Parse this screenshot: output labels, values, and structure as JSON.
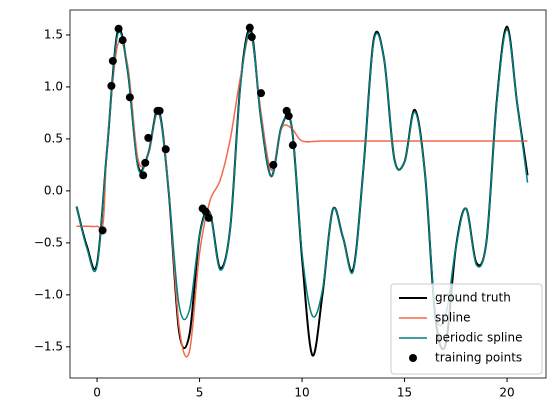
{
  "chart_data": {
    "type": "line",
    "xlim": [
      -1.32,
      21.9
    ],
    "ylim": [
      -1.8,
      1.74
    ],
    "xticks": [
      0,
      5,
      10,
      15,
      20
    ],
    "yticks": [
      {
        "value": -1.5,
        "label": "−1.5"
      },
      {
        "value": -1.0,
        "label": "−1.0"
      },
      {
        "value": -0.5,
        "label": "−0.5"
      },
      {
        "value": 0,
        "label": "0.0"
      },
      {
        "value": 0.5,
        "label": "0.5"
      },
      {
        "value": 1.0,
        "label": "1.0"
      },
      {
        "value": 1.5,
        "label": "1.5"
      }
    ],
    "legend": "lower right",
    "series": [
      {
        "name": "ground truth",
        "type": "line",
        "color": "#000000",
        "width": 2,
        "x": [
          -1,
          -0.5,
          0,
          0.5,
          1,
          1.5,
          2,
          2.5,
          3,
          3.5,
          4,
          4.5,
          5,
          5.5,
          6,
          6.5,
          7,
          7.5,
          8,
          8.5,
          9,
          9.5,
          10,
          10.5,
          11,
          11.5,
          12,
          12.5,
          13,
          13.5,
          14,
          14.5,
          15,
          15.5,
          16,
          16.5,
          17,
          17.5,
          18,
          18.5,
          19,
          19.5,
          20,
          20.5,
          21
        ],
        "values": [
          -0.15,
          -0.53,
          -0.7,
          0.43,
          1.53,
          1.15,
          0.24,
          0.36,
          0.78,
          -0.02,
          -1.35,
          -1.39,
          -0.43,
          -0.21,
          -0.74,
          -0.35,
          1.04,
          1.55,
          0.69,
          0.14,
          0.62,
          0.61,
          -0.65,
          -1.58,
          -0.99,
          -0.18,
          -0.45,
          -0.75,
          0.23,
          1.46,
          1.27,
          0.31,
          0.28,
          0.78,
          0.16,
          -1.21,
          -1.48,
          -0.55,
          -0.17,
          -0.69,
          -0.48,
          0.87,
          1.58,
          0.83,
          0.15
        ]
      },
      {
        "name": "spline",
        "type": "line",
        "color": "#f4694d",
        "width": 1.5,
        "x": [
          -1,
          -0.5,
          0,
          0.3,
          0.5,
          1,
          1.5,
          2,
          2.5,
          3,
          3.5,
          4,
          4.5,
          5,
          5.5,
          6,
          6.5,
          7,
          7.5,
          8,
          8.5,
          9,
          9.5,
          10,
          11,
          13,
          15,
          17,
          19,
          21
        ],
        "values": [
          -0.34,
          -0.34,
          -0.34,
          -0.3,
          0.45,
          1.4,
          1.2,
          0.3,
          0.35,
          0.75,
          0.0,
          -1.3,
          -1.55,
          -0.6,
          -0.1,
          0.1,
          0.5,
          1.1,
          1.5,
          0.75,
          0.2,
          0.6,
          0.6,
          0.48,
          0.48,
          0.48,
          0.48,
          0.48,
          0.48,
          0.48
        ]
      },
      {
        "name": "periodic spline",
        "type": "line",
        "color": "#007f80",
        "width": 1.5,
        "x": [
          -1,
          -0.5,
          0,
          0.5,
          1,
          1.5,
          2,
          2.5,
          3,
          3.5,
          4,
          4.5,
          5,
          5.5,
          6,
          6.5,
          7,
          7.5,
          8,
          8.5,
          9,
          9.5,
          10,
          10.5,
          11,
          11.5,
          12,
          12.5,
          13,
          13.5,
          14,
          14.5,
          15,
          15.5,
          16,
          16.5,
          17,
          17.5,
          18,
          18.5,
          19,
          19.5,
          20,
          20.5,
          21
        ],
        "values": [
          -0.15,
          -0.55,
          -0.72,
          0.43,
          1.5,
          1.15,
          0.22,
          0.36,
          0.76,
          -0.02,
          -1.1,
          -1.15,
          -0.43,
          -0.21,
          -0.76,
          -0.35,
          1.02,
          1.52,
          0.69,
          0.14,
          0.62,
          0.61,
          -0.6,
          -1.2,
          -0.95,
          -0.18,
          -0.45,
          -0.77,
          0.23,
          1.44,
          1.27,
          0.31,
          0.28,
          0.76,
          0.16,
          -1.15,
          -1.2,
          -0.55,
          -0.17,
          -0.71,
          -0.48,
          0.85,
          1.55,
          0.83,
          0.08
        ]
      },
      {
        "name": "training points",
        "type": "scatter",
        "color": "#000000",
        "x": [
          0.27,
          0.7,
          0.77,
          1.05,
          1.25,
          1.6,
          2.25,
          2.35,
          2.5,
          2.95,
          3.05,
          3.35,
          5.15,
          5.3,
          5.45,
          7.45,
          7.55,
          8.0,
          8.6,
          9.25,
          9.35,
          9.55
        ],
        "values": [
          -0.38,
          1.01,
          1.25,
          1.56,
          1.45,
          0.9,
          0.15,
          0.27,
          0.51,
          0.77,
          0.77,
          0.4,
          -0.17,
          -0.2,
          -0.26,
          1.57,
          1.48,
          0.94,
          0.25,
          0.77,
          0.72,
          0.44
        ]
      }
    ]
  }
}
